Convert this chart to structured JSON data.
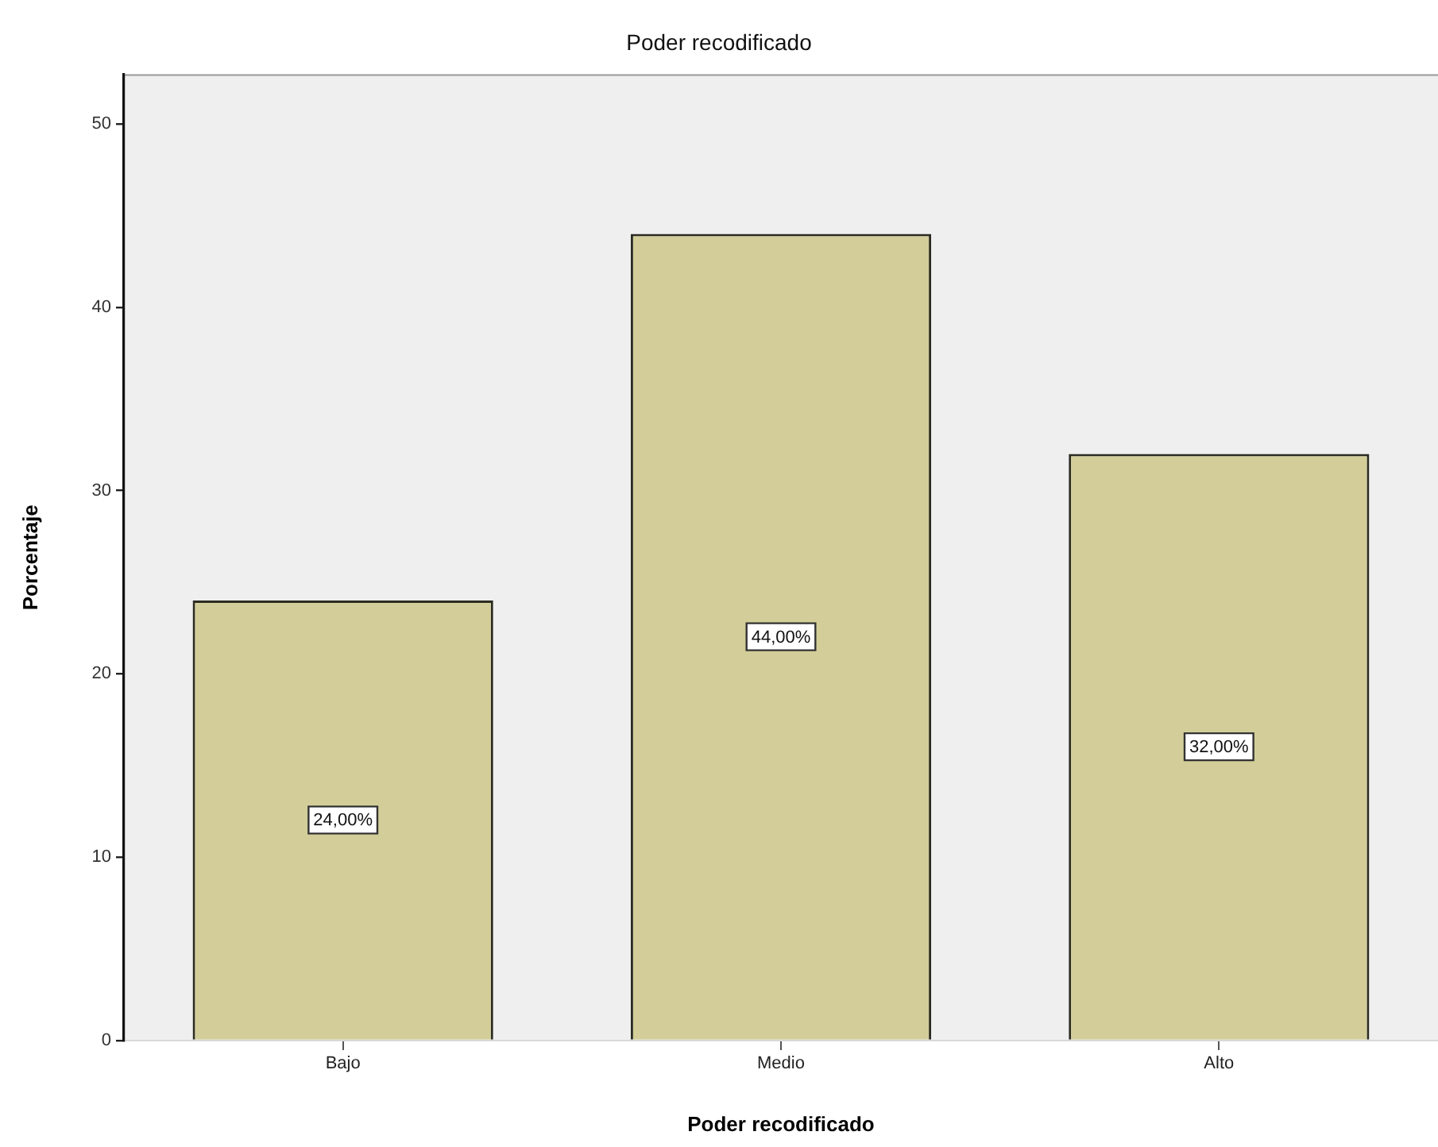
{
  "chart_data": {
    "type": "bar",
    "title": "Poder recodificado",
    "xlabel": "Poder recodificado",
    "ylabel": "Porcentaje",
    "categories": [
      "Bajo",
      "Medio",
      "Alto"
    ],
    "values": [
      24,
      44,
      32
    ],
    "value_labels": [
      "24,00%",
      "44,00%",
      "32,00%"
    ],
    "color": "#d3ce99",
    "ylim": [
      0,
      52.7
    ],
    "yticks": [
      0,
      10,
      20,
      30,
      40,
      50
    ],
    "grid": false,
    "legend": false
  }
}
